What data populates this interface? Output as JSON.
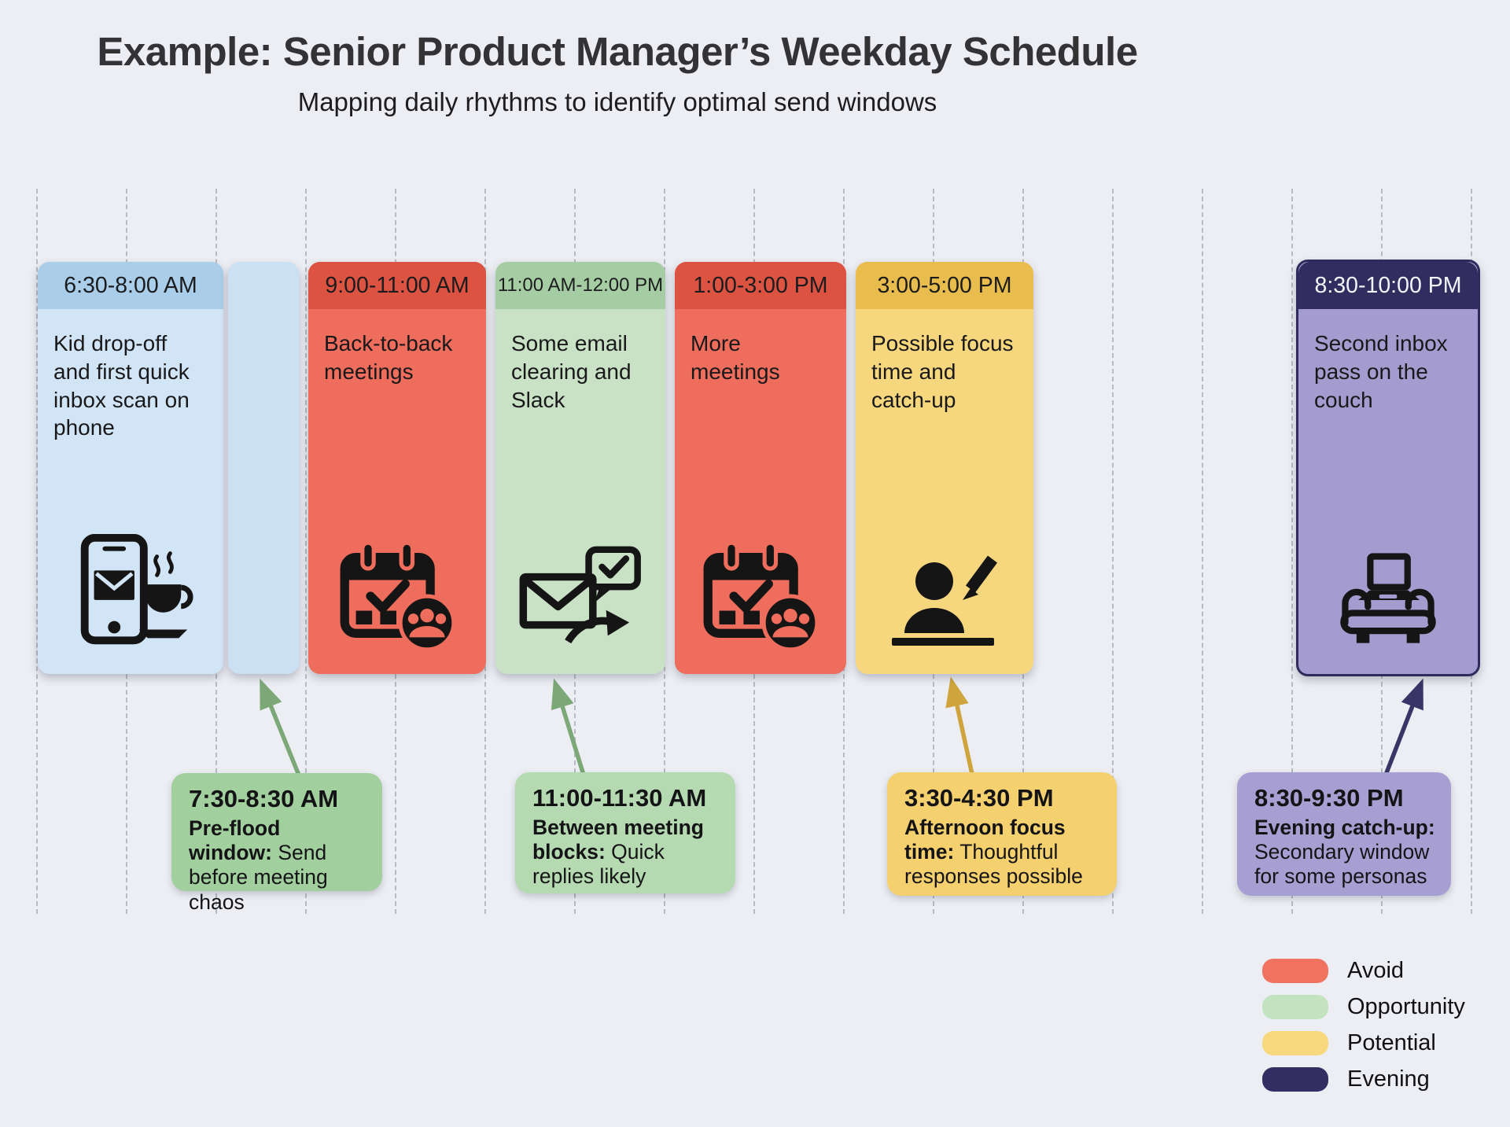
{
  "header": {
    "title": "Example: Senior Product Manager’s Weekday Schedule",
    "subtitle": "Mapping daily rhythms to identify optimal send windows"
  },
  "columns": [
    {
      "time": "6:30-8:00 AM",
      "description": "Kid drop-off and first quick inbox scan on phone",
      "icon": "phone-email-coffee-icon",
      "header_color": "#aacee9",
      "body_color": "#d2e5f6"
    },
    {
      "time": "",
      "description": "",
      "icon": "",
      "header_color": "#cbe0f3",
      "body_color": "#cbe0f3"
    },
    {
      "time": "9:00-11:00 AM",
      "description": "Back-to-back meetings",
      "icon": "calendar-meetings-icon",
      "header_color": "#dc5342",
      "body_color": "#ee6d5c"
    },
    {
      "time": "11:00 AM-12:00 PM",
      "description": "Some email clearing and Slack",
      "icon": "email-chat-icon",
      "header_color": "#a6cca3",
      "body_color": "#c9e2c5"
    },
    {
      "time": "1:00-3:00 PM",
      "description": "More meetings",
      "icon": "calendar-meetings-icon",
      "header_color": "#dc5342",
      "body_color": "#ee6d5c"
    },
    {
      "time": "3:00-5:00 PM",
      "description": "Possible focus time and catch-up",
      "icon": "person-writing-icon",
      "header_color": "#e9bd4d",
      "body_color": "#f6d77e"
    },
    {
      "time": "8:30-10:00 PM",
      "description": "Second inbox pass on the couch",
      "icon": "couch-laptop-icon",
      "header_color": "#312e5f",
      "body_color": "#a49cce"
    }
  ],
  "callouts": [
    {
      "time": "7:30-8:30 AM",
      "lead": "Pre-flood window:",
      "text": "Send before meeting chaos",
      "color": "#a2cf9e"
    },
    {
      "time": "11:00-11:30 AM",
      "lead": "Between meeting blocks:",
      "text": "Quick replies likely",
      "color": "#b5dab1"
    },
    {
      "time": "3:30-4:30 PM",
      "lead": "Afternoon focus time:",
      "text": "Thoughtful responses possible",
      "color": "#f5d06e"
    },
    {
      "time": "8:30-9:30 PM",
      "lead": "Evening catch-up:",
      "text": "Secondary window for some personas",
      "color": "#a79fd2"
    }
  ],
  "legend": {
    "items": [
      {
        "label": "Avoid",
        "color": "#f0735f"
      },
      {
        "label": "Opportunity",
        "color": "#c3e3c0"
      },
      {
        "label": "Potential",
        "color": "#f8d87d"
      },
      {
        "label": "Evening",
        "color": "#332f63"
      }
    ]
  },
  "colors": {
    "background": "#eceef3",
    "arrow_green": "#7ca878",
    "arrow_gold": "#cfa43d",
    "arrow_navy": "#3a3566",
    "grid_line": "#b7bac3"
  }
}
